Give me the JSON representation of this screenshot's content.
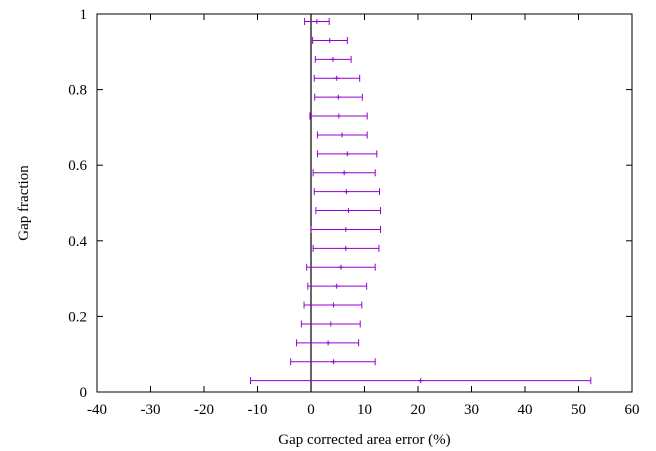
{
  "chart_data": {
    "type": "scatter",
    "xlabel": "Gap corrected area error (%)",
    "ylabel": "Gap fraction",
    "xlim": [
      -40,
      60
    ],
    "ylim": [
      0,
      1
    ],
    "x_ticks": [
      "-40",
      "-30",
      "-20",
      "-10",
      "0",
      "10",
      "20",
      "30",
      "40",
      "50",
      "60"
    ],
    "y_ticks": [
      "0",
      "0.2",
      "0.4",
      "0.6",
      "0.8",
      "1"
    ],
    "grid": false,
    "reference_line_x": 0,
    "series_color": "#9400d3",
    "points": [
      {
        "y": 0.98,
        "x": 1.1,
        "xmin": -1.2,
        "xmax": 3.4
      },
      {
        "y": 0.93,
        "x": 3.5,
        "xmin": 0.3,
        "xmax": 6.8
      },
      {
        "y": 0.88,
        "x": 4.1,
        "xmin": 0.8,
        "xmax": 7.5
      },
      {
        "y": 0.83,
        "x": 4.8,
        "xmin": 0.6,
        "xmax": 9.1
      },
      {
        "y": 0.78,
        "x": 5.1,
        "xmin": 0.7,
        "xmax": 9.6
      },
      {
        "y": 0.73,
        "x": 5.2,
        "xmin": -0.2,
        "xmax": 10.5
      },
      {
        "y": 0.68,
        "x": 5.8,
        "xmin": 1.2,
        "xmax": 10.5
      },
      {
        "y": 0.63,
        "x": 6.8,
        "xmin": 1.2,
        "xmax": 12.3
      },
      {
        "y": 0.58,
        "x": 6.2,
        "xmin": 0.4,
        "xmax": 12.0
      },
      {
        "y": 0.53,
        "x": 6.6,
        "xmin": 0.6,
        "xmax": 12.8
      },
      {
        "y": 0.48,
        "x": 7.0,
        "xmin": 0.9,
        "xmax": 13.0
      },
      {
        "y": 0.43,
        "x": 6.5,
        "xmin": 0.0,
        "xmax": 13.0
      },
      {
        "y": 0.38,
        "x": 6.5,
        "xmin": 0.4,
        "xmax": 12.7
      },
      {
        "y": 0.33,
        "x": 5.6,
        "xmin": -0.8,
        "xmax": 12.0
      },
      {
        "y": 0.28,
        "x": 4.8,
        "xmin": -0.6,
        "xmax": 10.4
      },
      {
        "y": 0.23,
        "x": 4.2,
        "xmin": -1.3,
        "xmax": 9.5
      },
      {
        "y": 0.18,
        "x": 3.7,
        "xmin": -1.8,
        "xmax": 9.2
      },
      {
        "y": 0.13,
        "x": 3.2,
        "xmin": -2.7,
        "xmax": 8.9
      },
      {
        "y": 0.08,
        "x": 4.2,
        "xmin": -3.8,
        "xmax": 12.0
      },
      {
        "y": 0.03,
        "x": 20.5,
        "xmin": -11.3,
        "xmax": 52.3
      }
    ]
  }
}
